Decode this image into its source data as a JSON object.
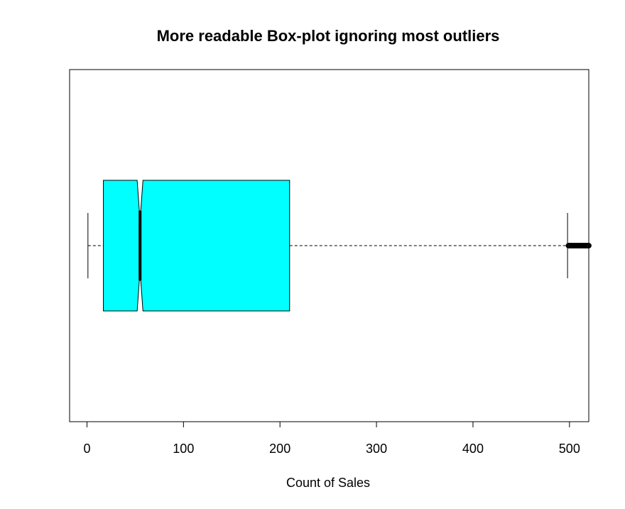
{
  "chart_data": {
    "type": "box",
    "orientation": "horizontal",
    "notched": true,
    "title": "More readable Box-plot ignoring most outliers",
    "xlabel": "Count of Sales",
    "ylabel": "",
    "xlim": [
      -18,
      520
    ],
    "ticks": [
      0,
      100,
      200,
      300,
      400,
      500
    ],
    "tick_labels": [
      "0",
      "100",
      "200",
      "300",
      "400",
      "500"
    ],
    "grid": false,
    "legend": "none",
    "box": {
      "whisker_low": 1,
      "q1": 17,
      "median": 55,
      "q3": 210,
      "whisker_high": 498,
      "notch_low": 52,
      "notch_high": 58,
      "outliers": [
        499,
        500,
        501,
        502,
        503,
        504,
        505,
        506,
        507,
        508,
        509,
        510,
        511,
        512,
        513,
        514,
        515,
        516,
        517,
        518,
        519,
        520
      ]
    },
    "colors": {
      "box_fill": "#00ffff",
      "stroke": "#000000",
      "background": "#ffffff"
    }
  }
}
